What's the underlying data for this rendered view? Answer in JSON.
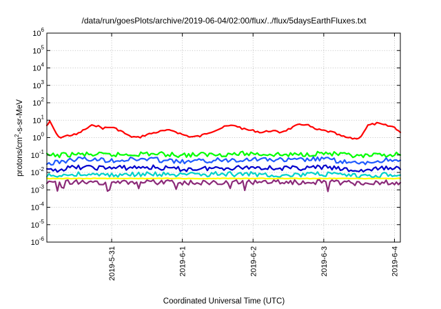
{
  "chart_data": {
    "type": "line",
    "title": "/data/run/goesPlots/archive/2019-06-04/02:00/flux/../flux/5daysEarthFluxes.txt",
    "xlabel": "Coordinated Universal Time (UTC)",
    "ylabel": "protons/cm²-s-sr-MeV",
    "ylabel_parts": {
      "pre": "protons/cm",
      "sup": "2",
      "post": "-s-sr-MeV"
    },
    "y_scale": "log",
    "ylim": [
      1e-06,
      1000000.0
    ],
    "y_ticks": [
      {
        "base": "10",
        "exp": "-6",
        "value": 1e-06
      },
      {
        "base": "10",
        "exp": "-5",
        "value": 1e-05
      },
      {
        "base": "10",
        "exp": "-4",
        "value": 0.0001
      },
      {
        "base": "10",
        "exp": "-3",
        "value": 0.001
      },
      {
        "base": "10",
        "exp": "-2",
        "value": 0.01
      },
      {
        "base": "10",
        "exp": "-1",
        "value": 0.1
      },
      {
        "base": "10",
        "exp": "0",
        "value": 1
      },
      {
        "base": "10",
        "exp": "1",
        "value": 10
      },
      {
        "base": "10",
        "exp": "2",
        "value": 100
      },
      {
        "base": "10",
        "exp": "3",
        "value": 1000
      },
      {
        "base": "10",
        "exp": "4",
        "value": 10000
      },
      {
        "base": "10",
        "exp": "5",
        "value": 100000
      },
      {
        "base": "10",
        "exp": "6",
        "value": 1000000
      }
    ],
    "x_range_days": [
      "2019-05-30T02:00",
      "2019-06-04T02:00"
    ],
    "x_ticks": [
      {
        "label": "2019-5-31",
        "date": "2019-05-31T00:00"
      },
      {
        "label": "2019-6-1",
        "date": "2019-06-01T00:00"
      },
      {
        "label": "2019-6-2",
        "date": "2019-06-02T00:00"
      },
      {
        "label": "2019-6-3",
        "date": "2019-06-03T00:00"
      },
      {
        "label": "2019-6-4",
        "date": "2019-06-04T00:00"
      }
    ],
    "grid": true,
    "legend": "none",
    "series": [
      {
        "color": "#ff0000",
        "x": [
          "2019-05-30T02:00",
          "2019-05-30T03:00",
          "2019-05-30T06:00",
          "2019-05-30T09:00",
          "2019-05-30T12:00",
          "2019-05-30T15:00",
          "2019-05-30T18:00",
          "2019-05-30T21:00",
          "2019-05-31T00:00",
          "2019-05-31T03:00",
          "2019-05-31T06:00",
          "2019-05-31T09:00",
          "2019-05-31T12:00",
          "2019-05-31T15:00",
          "2019-05-31T18:00",
          "2019-05-31T21:00",
          "2019-06-01T00:00",
          "2019-06-01T03:00",
          "2019-06-01T06:00",
          "2019-06-01T09:00",
          "2019-06-01T12:00",
          "2019-06-01T15:00",
          "2019-06-01T18:00",
          "2019-06-01T21:00",
          "2019-06-02T00:00",
          "2019-06-02T03:00",
          "2019-06-02T06:00",
          "2019-06-02T09:00",
          "2019-06-02T12:00",
          "2019-06-02T15:00",
          "2019-06-02T18:00",
          "2019-06-02T21:00",
          "2019-06-03T00:00",
          "2019-06-03T03:00",
          "2019-06-03T06:00",
          "2019-06-03T09:00",
          "2019-06-03T12:00",
          "2019-06-03T15:00",
          "2019-06-03T18:00",
          "2019-06-03T21:00",
          "2019-06-04T00:00",
          "2019-06-04T02:00"
        ],
        "y": [
          5,
          8,
          1,
          1.3,
          1.5,
          3,
          5.5,
          3.5,
          4,
          2.5,
          1.2,
          1.0,
          1.5,
          2,
          2.5,
          2.5,
          1.5,
          1.1,
          1.2,
          2,
          3,
          4.5,
          5,
          3,
          2.5,
          2,
          2.5,
          2,
          3,
          5,
          6,
          3,
          2.5,
          2,
          1.2,
          0.9,
          0.9,
          5,
          6.5,
          5,
          4,
          2
        ]
      },
      {
        "color": "#00ff00",
        "x": [
          "2019-05-30T02:00",
          "2019-05-30T12:00",
          "2019-05-31T00:00",
          "2019-05-31T12:00",
          "2019-06-01T00:00",
          "2019-06-01T12:00",
          "2019-06-02T00:00",
          "2019-06-02T12:00",
          "2019-06-03T00:00",
          "2019-06-03T12:00",
          "2019-06-04T00:00",
          "2019-06-04T02:00"
        ],
        "y": [
          0.09,
          0.11,
          0.1,
          0.12,
          0.1,
          0.11,
          0.12,
          0.1,
          0.13,
          0.08,
          0.11,
          0.1
        ]
      },
      {
        "color": "#1e5aff",
        "x": [
          "2019-05-30T02:00",
          "2019-05-30T12:00",
          "2019-05-31T00:00",
          "2019-05-31T12:00",
          "2019-06-01T00:00",
          "2019-06-01T12:00",
          "2019-06-02T00:00",
          "2019-06-02T12:00",
          "2019-06-03T00:00",
          "2019-06-03T12:00",
          "2019-06-04T00:00",
          "2019-06-04T02:00"
        ],
        "y": [
          0.03,
          0.06,
          0.05,
          0.06,
          0.04,
          0.05,
          0.06,
          0.05,
          0.06,
          0.03,
          0.06,
          0.05
        ]
      },
      {
        "color": "#0000cc",
        "x": [
          "2019-05-30T02:00",
          "2019-05-30T12:00",
          "2019-05-31T00:00",
          "2019-05-31T12:00",
          "2019-06-01T00:00",
          "2019-06-01T12:00",
          "2019-06-02T00:00",
          "2019-06-02T12:00",
          "2019-06-03T00:00",
          "2019-06-03T12:00",
          "2019-06-04T00:00",
          "2019-06-04T02:00"
        ],
        "y": [
          0.012,
          0.02,
          0.018,
          0.02,
          0.015,
          0.018,
          0.02,
          0.017,
          0.02,
          0.012,
          0.02,
          0.015
        ]
      },
      {
        "color": "#00d2c8",
        "x": [
          "2019-05-30T02:00",
          "2019-05-30T12:00",
          "2019-05-31T00:00",
          "2019-05-31T12:00",
          "2019-06-01T00:00",
          "2019-06-01T12:00",
          "2019-06-02T00:00",
          "2019-06-02T12:00",
          "2019-06-03T00:00",
          "2019-06-03T12:00",
          "2019-06-04T00:00",
          "2019-06-04T02:00"
        ],
        "y": [
          0.006,
          0.008,
          0.007,
          0.008,
          0.007,
          0.008,
          0.008,
          0.007,
          0.008,
          0.006,
          0.008,
          0.007
        ]
      },
      {
        "color": "#ffff00",
        "x": [
          "2019-05-30T02:00",
          "2019-05-30T12:00",
          "2019-05-31T00:00",
          "2019-05-31T12:00",
          "2019-06-01T00:00",
          "2019-06-01T12:00",
          "2019-06-02T00:00",
          "2019-06-02T12:00",
          "2019-06-03T00:00",
          "2019-06-03T12:00",
          "2019-06-04T00:00",
          "2019-06-04T02:00"
        ],
        "y": [
          0.0045,
          0.0045,
          0.0045,
          0.0045,
          0.0045,
          0.0045,
          0.0045,
          0.0045,
          0.0045,
          0.0045,
          0.0045,
          0.0045
        ]
      },
      {
        "color": "#8b2a78",
        "x": [
          "2019-05-30T02:00",
          "2019-05-30T12:00",
          "2019-05-31T00:00",
          "2019-05-31T12:00",
          "2019-06-01T00:00",
          "2019-06-01T12:00",
          "2019-06-02T00:00",
          "2019-06-02T12:00",
          "2019-06-03T00:00",
          "2019-06-03T12:00",
          "2019-06-04T00:00",
          "2019-06-04T02:00"
        ],
        "y": [
          0.0025,
          0.0028,
          0.0027,
          0.0028,
          0.0026,
          0.0028,
          0.0028,
          0.0027,
          0.0028,
          0.0024,
          0.0027,
          0.0026
        ]
      }
    ]
  }
}
